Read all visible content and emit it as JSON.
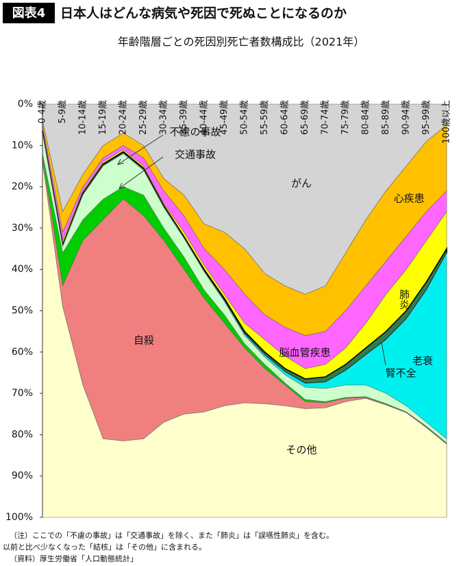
{
  "header": {
    "badge": "図表4",
    "title": "日本人はどんな病気や死因で死ぬことになるのか"
  },
  "chart_data": {
    "type": "stacked_area",
    "title": "年齢階層ごとの死因別死亡者数構成比（2021年）",
    "categories": [
      "0-4歳",
      "5-9歳",
      "10-14歳",
      "15-19歳",
      "20-24歳",
      "25-29歳",
      "30-34歳",
      "35-39歳",
      "40-44歳",
      "45-49歳",
      "50-54歳",
      "55-59歳",
      "60-64歳",
      "65-69歳",
      "70-74歳",
      "75-79歳",
      "80-84歳",
      "85-89歳",
      "90-94歳",
      "95-99歳",
      "100歳以上"
    ],
    "y_reversed": true,
    "ylim": [
      0,
      100
    ],
    "yticks": [
      {
        "value": 0,
        "label": "0%"
      },
      {
        "value": 10,
        "label": "10%"
      },
      {
        "value": 20,
        "label": "20%"
      },
      {
        "value": 30,
        "label": "30%"
      },
      {
        "value": 40,
        "label": "40%"
      },
      {
        "value": 50,
        "label": "50%"
      },
      {
        "value": 60,
        "label": "60%"
      },
      {
        "value": 70,
        "label": "70%"
      },
      {
        "value": 80,
        "label": "80%"
      },
      {
        "value": 90,
        "label": "90%"
      },
      {
        "value": 100,
        "label": "100%"
      }
    ],
    "series": [
      {
        "name": "がん",
        "color": "#d4d4d4",
        "values": [
          4,
          26,
          17,
          10,
          7,
          10,
          18,
          22,
          29,
          31,
          35,
          41,
          44,
          46,
          44,
          36,
          28,
          21,
          15,
          9,
          5
        ]
      },
      {
        "name": "心疾患",
        "color": "#ffc000",
        "values": [
          1,
          5,
          3,
          3,
          3,
          3,
          3,
          5,
          6,
          9,
          11,
          10,
          10,
          10,
          11,
          14,
          16,
          17,
          17,
          17,
          16
        ]
      },
      {
        "name": "脳血管疾患",
        "color": "#ff66ff",
        "values": [
          1,
          2,
          1,
          1,
          1,
          2,
          3,
          4,
          4,
          6,
          7,
          6,
          7,
          8,
          8,
          9,
          9,
          8,
          8,
          7,
          5
        ]
      },
      {
        "name": "肺炎",
        "color": "#ffff00",
        "values": [
          0.5,
          1,
          0.5,
          0.5,
          0.5,
          0.5,
          0.5,
          1,
          1,
          1,
          2,
          3,
          3,
          2.5,
          3,
          4,
          6,
          9,
          10,
          10,
          9
        ]
      },
      {
        "name": "腎不全",
        "color": "#2e7d4f",
        "values": [
          0.2,
          0.3,
          0.3,
          0.3,
          0.3,
          0.3,
          0.3,
          0.3,
          0.4,
          0.5,
          0.6,
          0.7,
          0.8,
          1.1,
          1.3,
          1.5,
          1.7,
          2,
          2,
          2,
          1
        ]
      },
      {
        "name": "老衰",
        "color": "#00f0f0",
        "values": [
          0.3,
          0.2,
          0.2,
          0.2,
          0.2,
          0.2,
          0.2,
          0.2,
          0.2,
          0.3,
          0.4,
          0.5,
          0.7,
          0.9,
          1.5,
          3.5,
          7.3,
          13,
          21,
          32,
          45
        ]
      },
      {
        "name": "不慮の事故",
        "color": "#ccffcc",
        "values": [
          5,
          1.5,
          6,
          8,
          8,
          6,
          5,
          4.5,
          4.4,
          3.2,
          2,
          1.8,
          2,
          3,
          3.2,
          3,
          2.8,
          2.5,
          1.5,
          1,
          1
        ]
      },
      {
        "name": "交通事故",
        "color": "#00cc00",
        "values": [
          1,
          8,
          5,
          5,
          3,
          5,
          3,
          3,
          2,
          2,
          1,
          1,
          0.5,
          0.5,
          0.3,
          0.2,
          0.2,
          0.2,
          0.1,
          0.2,
          0.2
        ]
      },
      {
        "name": "自殺",
        "color": "#f08080",
        "values": [
          1,
          5,
          35,
          53,
          58.5,
          54,
          44,
          35,
          27.5,
          20,
          13.3,
          8.5,
          5,
          1.7,
          1.2,
          0.8,
          0.2,
          0.1,
          0.1,
          0.1,
          0.1
        ]
      },
      {
        "name": "その他",
        "color": "#ffffcc",
        "values": [
          86,
          51,
          32,
          19,
          18.5,
          19,
          23,
          25,
          25.5,
          27,
          27.7,
          27.5,
          27,
          26.3,
          26.5,
          28,
          28.8,
          27.2,
          25.3,
          21.7,
          17.7
        ]
      }
    ]
  },
  "notes": [
    "（注）ここでの「不慮の事故」は「交通事故」を除く、また「肺炎」は「誤嚥性肺炎」を含む。",
    "以前と比べ少なくなった「結核」は「その他」に含まれる。",
    "（資料）厚生労働省「人口動態統計」"
  ]
}
